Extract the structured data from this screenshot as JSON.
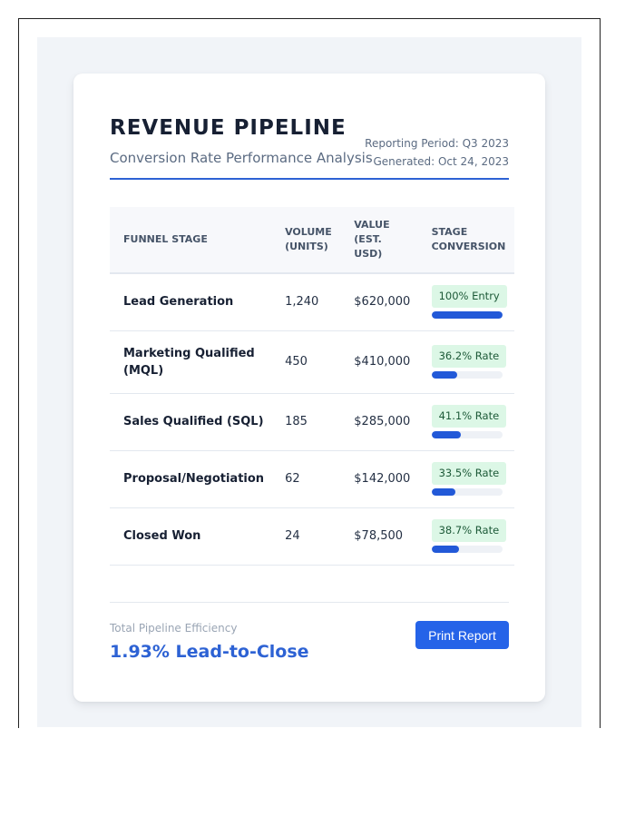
{
  "header": {
    "title": "REVENUE PIPELINE",
    "subtitle": "Conversion Rate Performance Analysis",
    "reporting_period": "Reporting Period: Q3 2023",
    "generated": "Generated: Oct 24, 2023"
  },
  "table": {
    "columns": [
      "FUNNEL STAGE",
      "VOLUME (UNITS)",
      "VALUE (EST. USD)",
      "STAGE CONVERSION"
    ],
    "rows": [
      {
        "stage": "Lead Generation",
        "volume": "1,240",
        "value": "$620,000",
        "conversion": "100% Entry",
        "bar_pct": 100
      },
      {
        "stage": "Marketing Qualified (MQL)",
        "volume": "450",
        "value": "$410,000",
        "conversion": "36.2% Rate",
        "bar_pct": 36.2
      },
      {
        "stage": "Sales Qualified (SQL)",
        "volume": "185",
        "value": "$285,000",
        "conversion": "41.1% Rate",
        "bar_pct": 41.1
      },
      {
        "stage": "Proposal/Negotiation",
        "volume": "62",
        "value": "$142,000",
        "conversion": "33.5% Rate",
        "bar_pct": 33.5
      },
      {
        "stage": "Closed Won",
        "volume": "24",
        "value": "$78,500",
        "conversion": "38.7% Rate",
        "bar_pct": 38.7
      }
    ]
  },
  "footer": {
    "efficiency_label": "Total Pipeline Efficiency",
    "efficiency_value": "1.93% Lead-to-Close",
    "print_button": "Print Report"
  },
  "colors": {
    "accent": "#2d62d4",
    "button": "#2563e8",
    "badge_bg": "#dcf7e6",
    "badge_text": "#1d5a38",
    "bar_fill": "#2259d8",
    "page_bg": "#f1f4f8"
  }
}
